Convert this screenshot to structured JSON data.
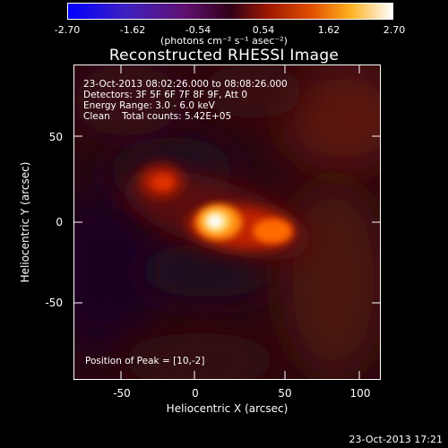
{
  "colorbar": {
    "ticks": [
      "-2.70",
      "-1.62",
      "-0.54",
      "0.54",
      "1.62",
      "2.70"
    ],
    "units": "(photons cm⁻² s⁻¹ asec⁻²)"
  },
  "title": "Reconstructed RHESSI Image",
  "info_lines": {
    "time": "23-Oct-2013 08:02:26.000 to 08:08:26.000",
    "detectors": "Detectors: 3F 5F 6F 7F 8F 9F, Att 0",
    "energy": "Energy Range: 3.0 - 6.0 keV",
    "clean": "Clean    Total counts: 5.42E+05"
  },
  "peak_label": "Position of Peak = [10,-2]",
  "axes": {
    "x_label": "Heliocentric X (arcsec)",
    "y_label": "Heliocentric Y (arcsec)",
    "x_ticks": [
      "-50",
      "0",
      "50",
      "100"
    ],
    "y_ticks": [
      "50",
      "0",
      "-50"
    ]
  },
  "timestamp": "23-Oct-2013 17:21"
}
